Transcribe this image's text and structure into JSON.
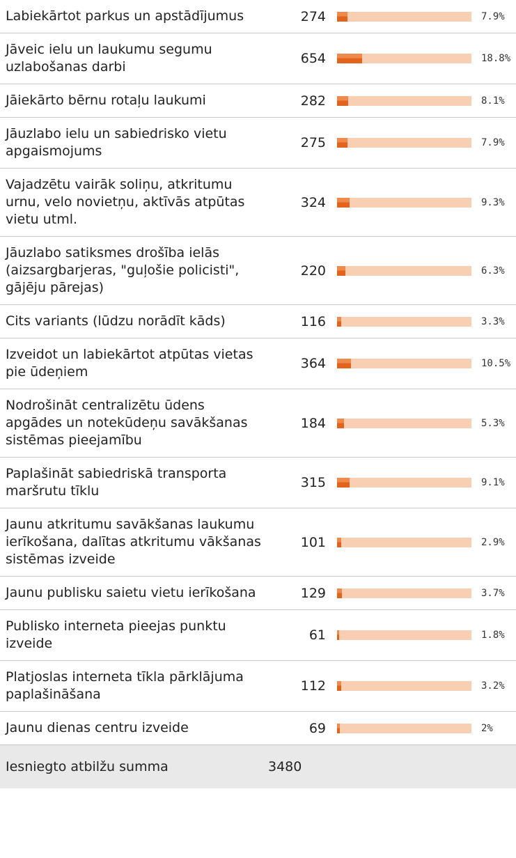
{
  "rows": [
    {
      "label": "Labiekārtot parkus un apstādījumus",
      "count": 274,
      "percent": 7.9,
      "percent_label": "7.9%"
    },
    {
      "label": "Jāveic ielu un laukumu segumu uzlabošanas darbi",
      "count": 654,
      "percent": 18.8,
      "percent_label": "18.8%"
    },
    {
      "label": "Jāiekārto bērnu rotaļu laukumi",
      "count": 282,
      "percent": 8.1,
      "percent_label": "8.1%"
    },
    {
      "label": "Jāuzlabo ielu un sabiedrisko vietu apgaismojums",
      "count": 275,
      "percent": 7.9,
      "percent_label": "7.9%"
    },
    {
      "label": "Vajadzētu vairāk soliņu, atkritumu urnu, velo novietņu, aktīvās atpūtas vietu utml.",
      "count": 324,
      "percent": 9.3,
      "percent_label": "9.3%"
    },
    {
      "label": "Jāuzlabo satiksmes drošība ielās (aizsargbarjeras, \"guļošie policisti\", gājēju pārejas)",
      "count": 220,
      "percent": 6.3,
      "percent_label": "6.3%"
    },
    {
      "label": "Cits variants (lūdzu norādīt kāds)",
      "count": 116,
      "percent": 3.3,
      "percent_label": "3.3%"
    },
    {
      "label": "Izveidot un labiekārtot atpūtas vietas pie ūdeņiem",
      "count": 364,
      "percent": 10.5,
      "percent_label": "10.5%"
    },
    {
      "label": "Nodrošināt centralizētu ūdens apgādes un notekūdeņu savākšanas sistēmas pieejamību",
      "count": 184,
      "percent": 5.3,
      "percent_label": "5.3%"
    },
    {
      "label": "Paplašināt sabiedriskā transporta maršrutu tīklu",
      "count": 315,
      "percent": 9.1,
      "percent_label": "9.1%"
    },
    {
      "label": "Jaunu atkritumu savākšanas laukumu ierīkošana, dalītas atkritumu vākšanas sistēmas izveide",
      "count": 101,
      "percent": 2.9,
      "percent_label": "2.9%"
    },
    {
      "label": "Jaunu publisku saietu vietu ierīkošana",
      "count": 129,
      "percent": 3.7,
      "percent_label": "3.7%"
    },
    {
      "label": "Publisko interneta pieejas punktu izveide",
      "count": 61,
      "percent": 1.8,
      "percent_label": "1.8%"
    },
    {
      "label": "Platjoslas interneta tīkla pārklājuma paplašināšana",
      "count": 112,
      "percent": 3.2,
      "percent_label": "3.2%"
    },
    {
      "label": "Jaunu dienas centru izveide",
      "count": 69,
      "percent": 2,
      "percent_label": "2%"
    }
  ],
  "footer": {
    "label": "Iesniegto atbilžu summa",
    "count": 3480
  }
}
